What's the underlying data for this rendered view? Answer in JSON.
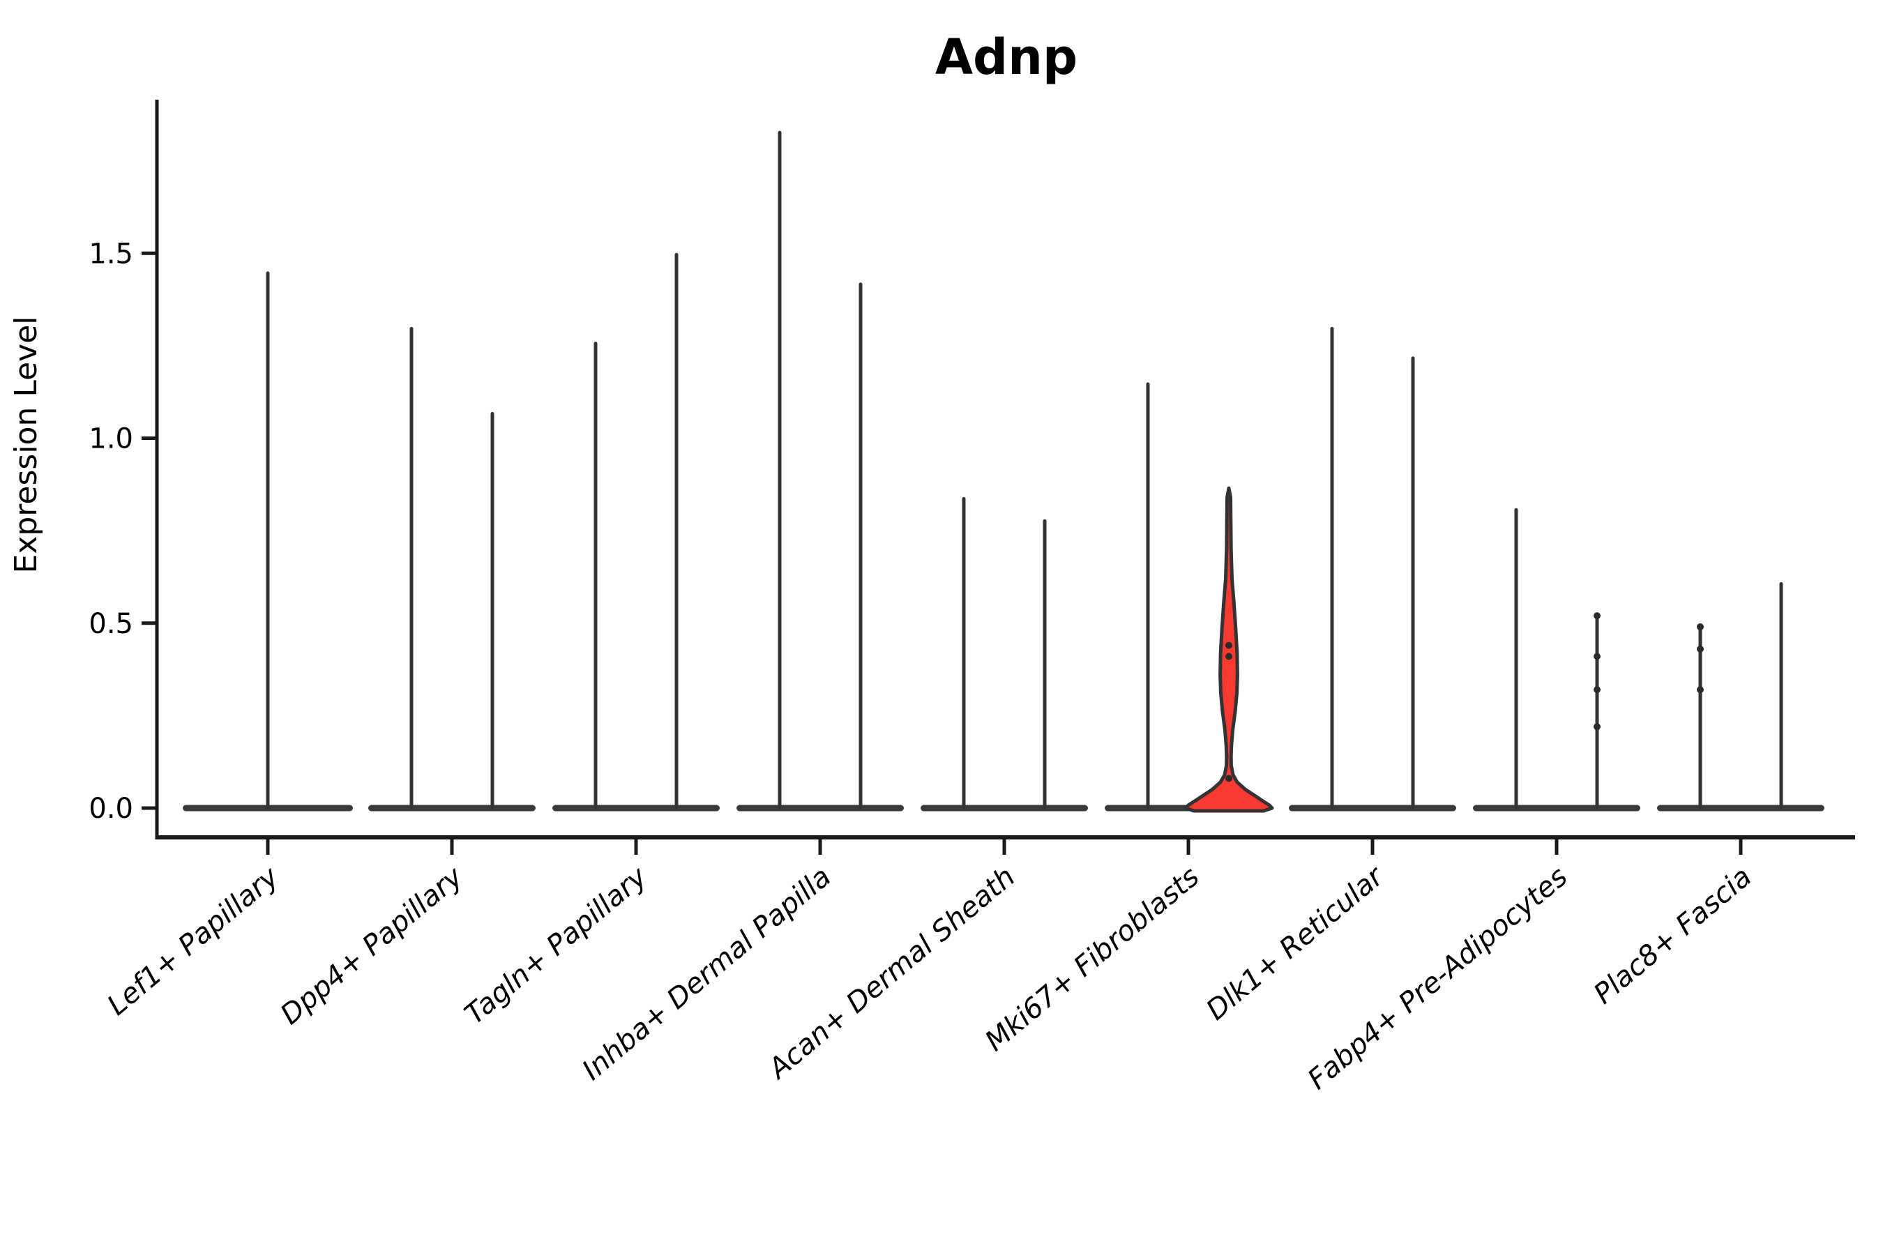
{
  "chart_data": {
    "type": "violin",
    "title": "Adnp",
    "ylabel": "Expression Level",
    "xlabel": "",
    "ylim": [
      -0.08,
      1.91
    ],
    "yticks": [
      0.0,
      0.5,
      1.0,
      1.5
    ],
    "grid": false,
    "legend": "none",
    "categories": [
      "Lef1+ Papillary",
      "Dpp4+ Papillary",
      "Tagln+ Papillary",
      "Inhba+ Dermal Papilla",
      "Acan+ Dermal Sheath",
      "Mki67+ Fibroblasts",
      "Dlk1+ Reticular",
      "Fabp4+ Pre-Adipocytes",
      "Plac8+ Fascia"
    ],
    "violins": [
      {
        "category": "Lef1+ Papillary",
        "position": "center",
        "max_expression": 1.45,
        "highlight": false
      },
      {
        "category": "Dpp4+ Papillary",
        "position": "left",
        "max_expression": 1.3,
        "highlight": false
      },
      {
        "category": "Dpp4+ Papillary",
        "position": "right",
        "max_expression": 1.07,
        "highlight": false
      },
      {
        "category": "Tagln+ Papillary",
        "position": "left",
        "max_expression": 1.26,
        "highlight": false
      },
      {
        "category": "Tagln+ Papillary",
        "position": "right",
        "max_expression": 1.5,
        "highlight": false
      },
      {
        "category": "Inhba+ Dermal Papilla",
        "position": "left",
        "max_expression": 1.83,
        "highlight": false
      },
      {
        "category": "Inhba+ Dermal Papilla",
        "position": "right",
        "max_expression": 1.42,
        "highlight": false
      },
      {
        "category": "Acan+ Dermal Sheath",
        "position": "left",
        "max_expression": 0.84,
        "highlight": false
      },
      {
        "category": "Acan+ Dermal Sheath",
        "position": "right",
        "max_expression": 0.78,
        "highlight": false
      },
      {
        "category": "Mki67+ Fibroblasts",
        "position": "left",
        "max_expression": 1.15,
        "highlight": false
      },
      {
        "category": "Mki67+ Fibroblasts",
        "position": "right",
        "max_expression": 0.87,
        "highlight": true,
        "jitter_values": [
          0.44,
          0.41,
          0.08
        ],
        "density_profile": [
          [
            0.865,
            0
          ],
          [
            0.84,
            2.5
          ],
          [
            0.78,
            2.8
          ],
          [
            0.7,
            3.2
          ],
          [
            0.62,
            4.5
          ],
          [
            0.55,
            7.5
          ],
          [
            0.48,
            10
          ],
          [
            0.42,
            11.8
          ],
          [
            0.36,
            12.4
          ],
          [
            0.31,
            11.5
          ],
          [
            0.26,
            9
          ],
          [
            0.21,
            5.5
          ],
          [
            0.17,
            3.8
          ],
          [
            0.14,
            3.2
          ],
          [
            0.115,
            3.4
          ],
          [
            0.09,
            6
          ],
          [
            0.07,
            12
          ],
          [
            0.05,
            24
          ],
          [
            0.035,
            36
          ],
          [
            0.02,
            48
          ],
          [
            0.008,
            58
          ],
          [
            0.0,
            62
          ]
        ]
      },
      {
        "category": "Dlk1+ Reticular",
        "position": "left",
        "max_expression": 1.3,
        "highlight": false
      },
      {
        "category": "Dlk1+ Reticular",
        "position": "right",
        "max_expression": 1.22,
        "highlight": false
      },
      {
        "category": "Fabp4+ Pre-Adipocytes",
        "position": "left",
        "max_expression": 0.81,
        "highlight": false
      },
      {
        "category": "Fabp4+ Pre-Adipocytes",
        "position": "right",
        "max_expression": 0.52,
        "highlight": false,
        "jitter_values": [
          0.52,
          0.41,
          0.32,
          0.22
        ]
      },
      {
        "category": "Plac8+ Fascia",
        "position": "left",
        "max_expression": 0.49,
        "highlight": false,
        "jitter_values": [
          0.49,
          0.43,
          0.32
        ]
      },
      {
        "category": "Plac8+ Fascia",
        "position": "right",
        "max_expression": 0.61,
        "highlight": false
      }
    ],
    "colors": {
      "violin_stroke": "#333333",
      "base_fill": "#3a3a3a",
      "highlight_fill": "#f93a31",
      "jitter_dot": "#2a2a2a",
      "axis": "#1a1a1a",
      "text": "#000000",
      "background": "#ffffff"
    }
  }
}
